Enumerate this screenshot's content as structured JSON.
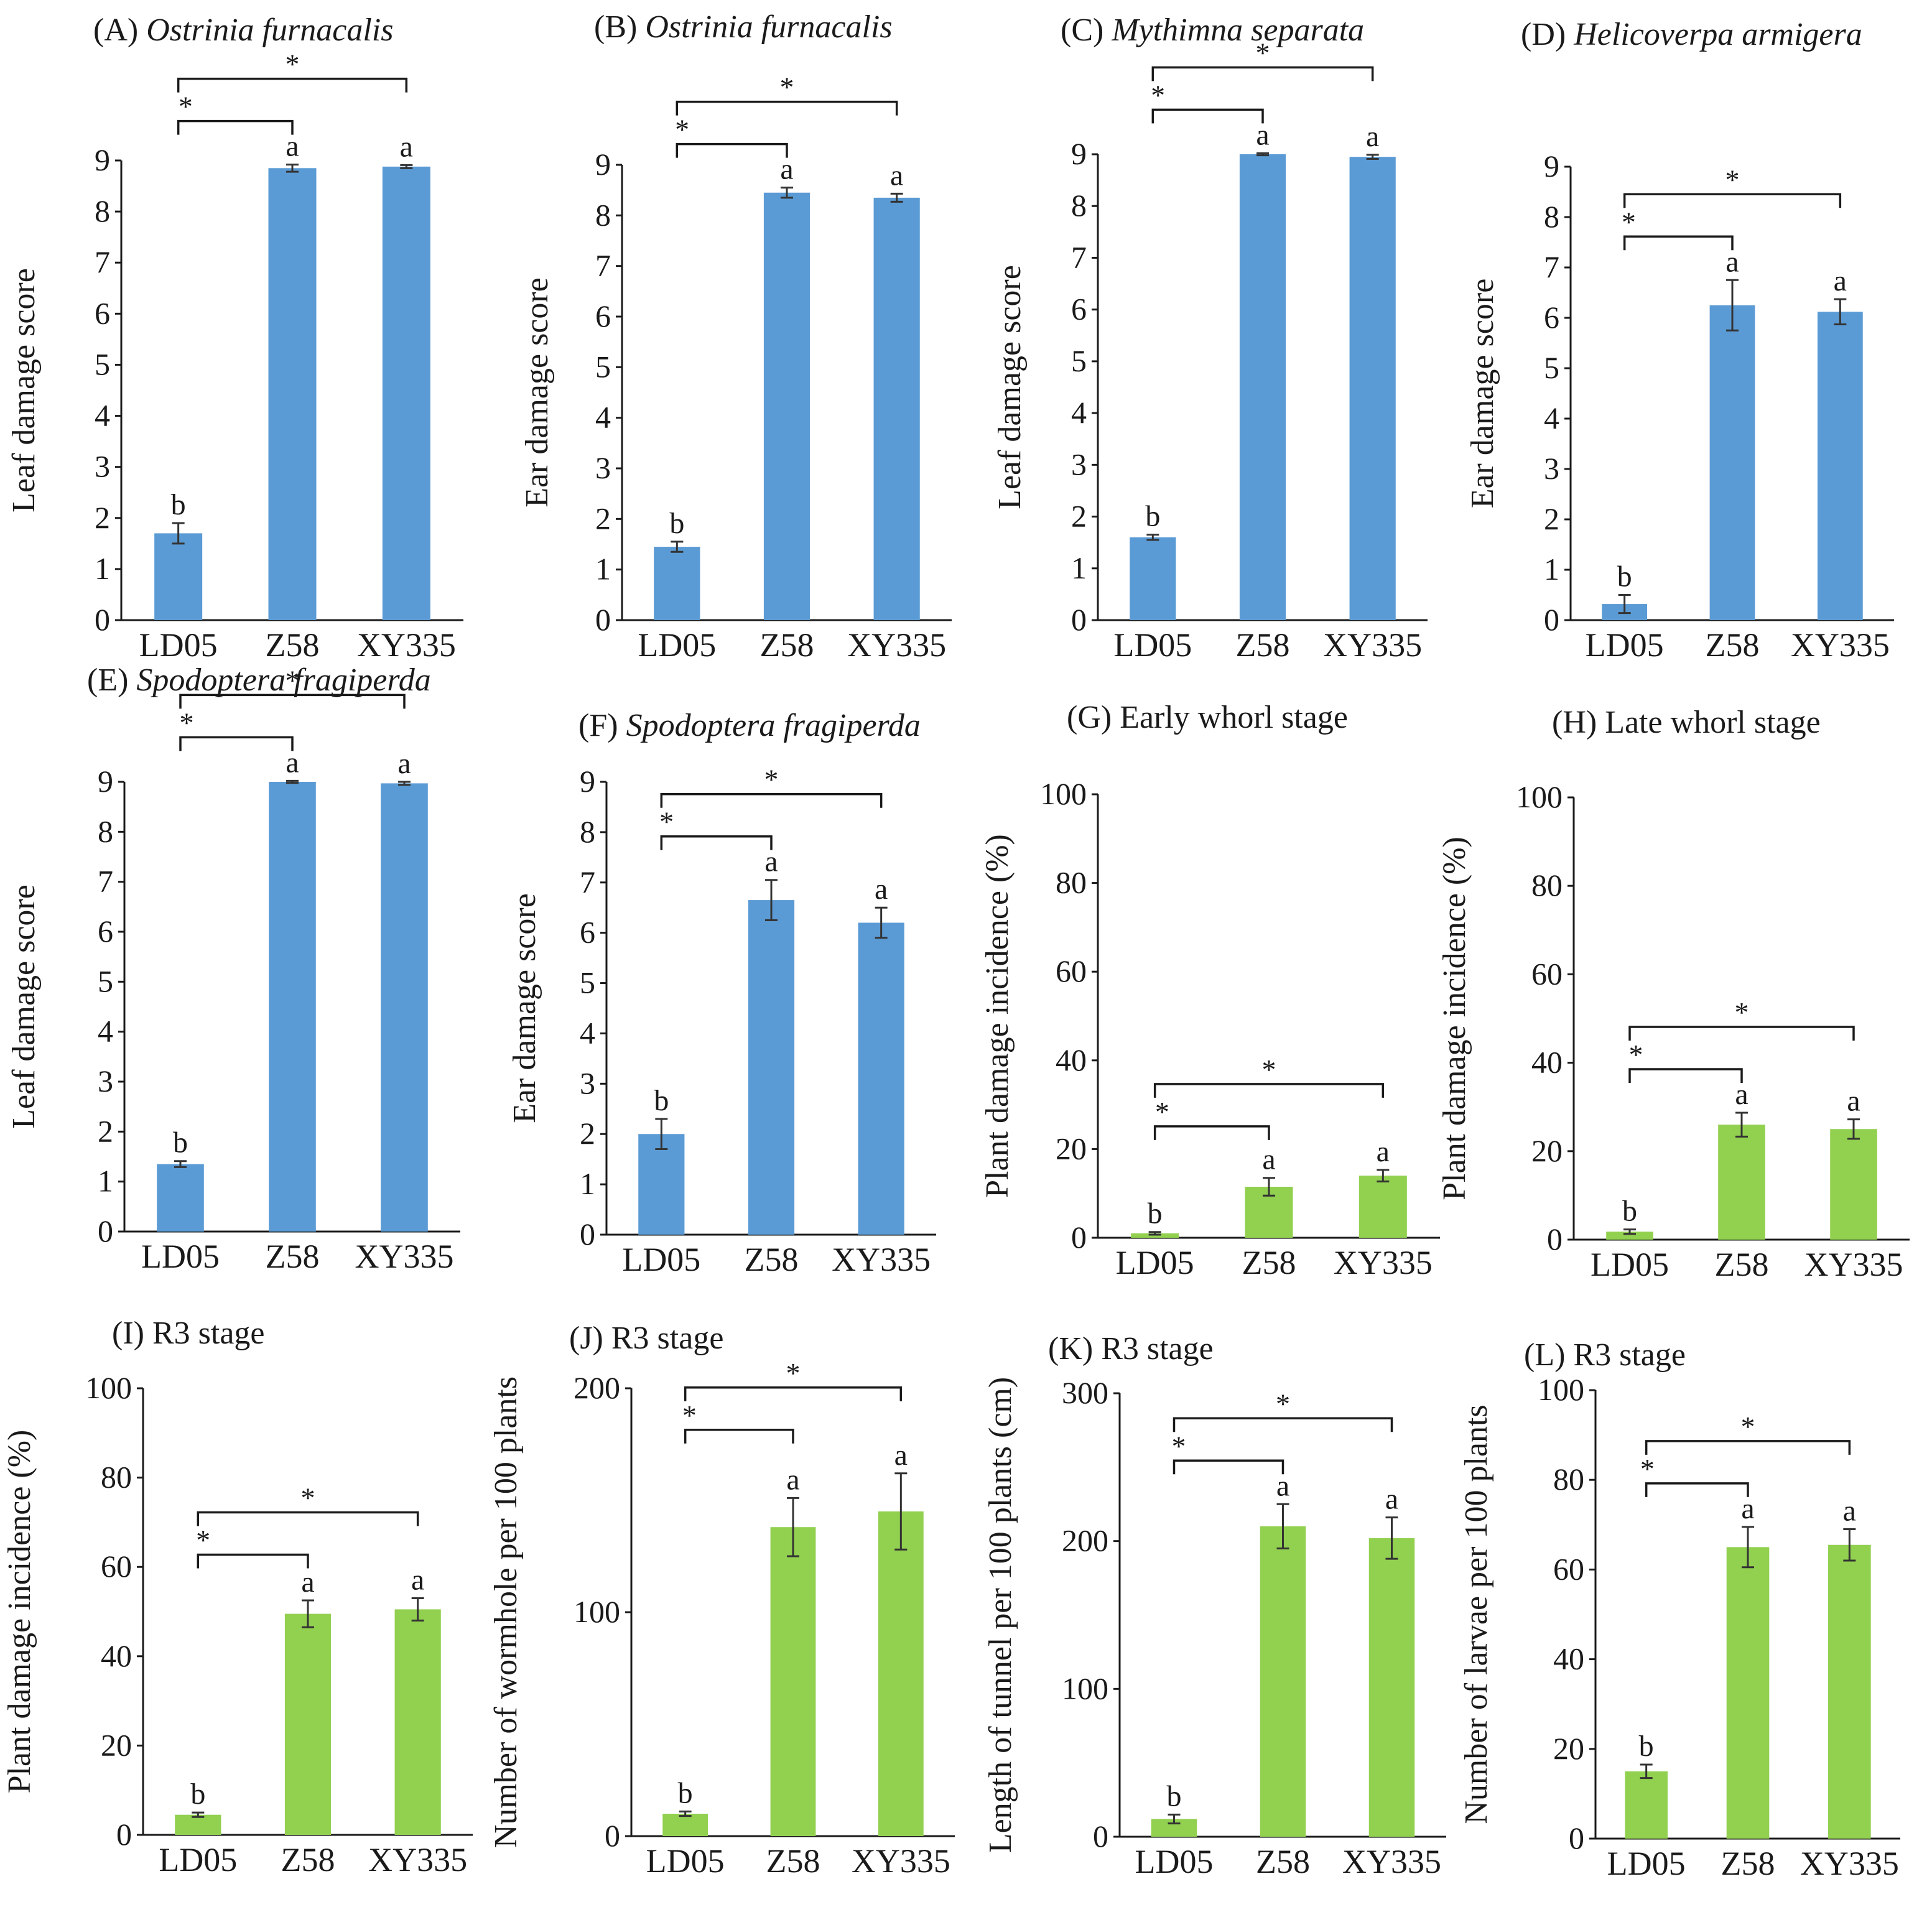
{
  "figure": {
    "colors": {
      "blue": "#5b9bd5",
      "green": "#92d050"
    },
    "layout_hint": "4 columns x 3 rows of bar charts"
  },
  "chart_data": [
    {
      "id": "A",
      "type": "bar",
      "letter": "(A)",
      "title": "Ostrinia furnacalis",
      "italic": true,
      "ylabel": "Leaf damage score",
      "ylim": [
        0,
        9
      ],
      "yticks": [
        0,
        1,
        2,
        3,
        4,
        5,
        6,
        7,
        8,
        9
      ],
      "categories": [
        "LD05",
        "Z58",
        "XY335"
      ],
      "values": [
        1.7,
        8.85,
        8.88
      ],
      "errors": [
        0.2,
        0.07,
        0.03
      ],
      "labels": [
        "b",
        "a",
        "a"
      ],
      "color": "blue",
      "brackets": [
        {
          "from": 0,
          "to": 1,
          "text": "*"
        },
        {
          "from": 0,
          "to": 2,
          "text": "*"
        }
      ]
    },
    {
      "id": "B",
      "type": "bar",
      "letter": "(B)",
      "title": "Ostrinia furnacalis",
      "italic": true,
      "ylabel": "Ear damage score",
      "ylim": [
        0,
        9
      ],
      "yticks": [
        0,
        1,
        2,
        3,
        4,
        5,
        6,
        7,
        8,
        9
      ],
      "categories": [
        "LD05",
        "Z58",
        "XY335"
      ],
      "values": [
        1.45,
        8.45,
        8.35
      ],
      "errors": [
        0.1,
        0.1,
        0.08
      ],
      "labels": [
        "b",
        "a",
        "a"
      ],
      "color": "blue",
      "brackets": [
        {
          "from": 0,
          "to": 1,
          "text": "*"
        },
        {
          "from": 0,
          "to": 2,
          "text": "*"
        }
      ]
    },
    {
      "id": "C",
      "type": "bar",
      "letter": "(C)",
      "title": "Mythimna separata",
      "italic": true,
      "ylabel": "Leaf damage score",
      "ylim": [
        0,
        9
      ],
      "yticks": [
        0,
        1,
        2,
        3,
        4,
        5,
        6,
        7,
        8,
        9
      ],
      "categories": [
        "LD05",
        "Z58",
        "XY335"
      ],
      "values": [
        1.6,
        9.0,
        8.95
      ],
      "errors": [
        0.05,
        0.02,
        0.04
      ],
      "labels": [
        "b",
        "a",
        "a"
      ],
      "color": "blue",
      "brackets": [
        {
          "from": 0,
          "to": 1,
          "text": "*"
        },
        {
          "from": 0,
          "to": 2,
          "text": "*"
        }
      ]
    },
    {
      "id": "D",
      "type": "bar",
      "letter": "(D)",
      "title": "Helicoverpa armigera",
      "italic": true,
      "ylabel": "Ear damage score",
      "ylim": [
        0,
        9
      ],
      "yticks": [
        0,
        1,
        2,
        3,
        4,
        5,
        6,
        7,
        8,
        9
      ],
      "categories": [
        "LD05",
        "Z58",
        "XY335"
      ],
      "values": [
        0.32,
        6.25,
        6.12
      ],
      "errors": [
        0.18,
        0.5,
        0.25
      ],
      "labels": [
        "b",
        "a",
        "a"
      ],
      "color": "blue",
      "brackets": [
        {
          "from": 0,
          "to": 1,
          "text": "*"
        },
        {
          "from": 0,
          "to": 2,
          "text": "*"
        }
      ]
    },
    {
      "id": "E",
      "type": "bar",
      "letter": "(E)",
      "title": "Spodoptera fragiperda",
      "italic": true,
      "ylabel": "Leaf damage score",
      "ylim": [
        0,
        9
      ],
      "yticks": [
        0,
        1,
        2,
        3,
        4,
        5,
        6,
        7,
        8,
        9
      ],
      "categories": [
        "LD05",
        "Z58",
        "XY335"
      ],
      "values": [
        1.35,
        9.0,
        8.97
      ],
      "errors": [
        0.06,
        0.02,
        0.03
      ],
      "labels": [
        "b",
        "a",
        "a"
      ],
      "color": "blue",
      "brackets": [
        {
          "from": 0,
          "to": 1,
          "text": "*"
        },
        {
          "from": 0,
          "to": 2,
          "text": "*"
        }
      ]
    },
    {
      "id": "F",
      "type": "bar",
      "letter": "(F)",
      "title": "Spodoptera fragiperda",
      "italic": true,
      "ylabel": "Ear damage score",
      "ylim": [
        0,
        9
      ],
      "yticks": [
        0,
        1,
        2,
        3,
        4,
        5,
        6,
        7,
        8,
        9
      ],
      "categories": [
        "LD05",
        "Z58",
        "XY335"
      ],
      "values": [
        2.0,
        6.65,
        6.2
      ],
      "errors": [
        0.3,
        0.4,
        0.3
      ],
      "labels": [
        "b",
        "a",
        "a"
      ],
      "color": "blue",
      "brackets": [
        {
          "from": 0,
          "to": 1,
          "text": "*"
        },
        {
          "from": 0,
          "to": 2,
          "text": "*"
        }
      ]
    },
    {
      "id": "G",
      "type": "bar",
      "letter": "(G)",
      "title": "Early whorl stage",
      "italic": false,
      "ylabel": "Plant damage incidence (%)",
      "ylim": [
        0,
        100
      ],
      "yticks": [
        0,
        20,
        40,
        60,
        80,
        100
      ],
      "categories": [
        "LD05",
        "Z58",
        "XY335"
      ],
      "values": [
        1.0,
        11.5,
        14.0
      ],
      "errors": [
        0.3,
        2.0,
        1.3
      ],
      "labels": [
        "b",
        "a",
        "a"
      ],
      "color": "green",
      "brackets": [
        {
          "from": 0,
          "to": 1,
          "text": "*"
        },
        {
          "from": 0,
          "to": 2,
          "text": "*"
        }
      ]
    },
    {
      "id": "H",
      "type": "bar",
      "letter": "(H)",
      "title": "Late whorl stage",
      "italic": false,
      "ylabel": "Plant damage incidence (%)",
      "ylim": [
        0,
        100
      ],
      "yticks": [
        0,
        20,
        40,
        60,
        80,
        100
      ],
      "categories": [
        "LD05",
        "Z58",
        "XY335"
      ],
      "values": [
        1.8,
        26.0,
        25.0
      ],
      "errors": [
        0.5,
        2.7,
        2.2
      ],
      "labels": [
        "b",
        "a",
        "a"
      ],
      "color": "green",
      "brackets": [
        {
          "from": 0,
          "to": 1,
          "text": "*"
        },
        {
          "from": 0,
          "to": 2,
          "text": "*"
        }
      ]
    },
    {
      "id": "I",
      "type": "bar",
      "letter": "(I)",
      "title": "R3 stage",
      "italic": false,
      "ylabel": "Plant damage incidence (%)",
      "ylim": [
        0,
        100
      ],
      "yticks": [
        0,
        20,
        40,
        60,
        80,
        100
      ],
      "categories": [
        "LD05",
        "Z58",
        "XY335"
      ],
      "values": [
        4.5,
        49.5,
        50.5
      ],
      "errors": [
        0.5,
        3.0,
        2.5
      ],
      "labels": [
        "b",
        "a",
        "a"
      ],
      "color": "green",
      "brackets": [
        {
          "from": 0,
          "to": 1,
          "text": "*"
        },
        {
          "from": 0,
          "to": 2,
          "text": "*"
        }
      ]
    },
    {
      "id": "J",
      "type": "bar",
      "letter": "(J)",
      "title": "R3 stage",
      "italic": false,
      "ylabel": "Number of wormhole per 100 plants",
      "ylim": [
        0,
        200
      ],
      "yticks": [
        0,
        100,
        200
      ],
      "categories": [
        "LD05",
        "Z58",
        "XY335"
      ],
      "values": [
        10,
        138,
        145
      ],
      "errors": [
        1,
        13,
        17
      ],
      "labels": [
        "b",
        "a",
        "a"
      ],
      "color": "green",
      "brackets": [
        {
          "from": 0,
          "to": 1,
          "text": "*"
        },
        {
          "from": 0,
          "to": 2,
          "text": "*"
        }
      ]
    },
    {
      "id": "K",
      "type": "bar",
      "letter": "(K)",
      "title": "R3 stage",
      "italic": false,
      "ylabel": "Length of tunnel per 100 plants (cm)",
      "ylim": [
        0,
        300
      ],
      "yticks": [
        0,
        100,
        200,
        300
      ],
      "categories": [
        "LD05",
        "Z58",
        "XY335"
      ],
      "values": [
        12,
        210,
        202
      ],
      "errors": [
        3,
        15,
        14
      ],
      "labels": [
        "b",
        "a",
        "a"
      ],
      "color": "green",
      "brackets": [
        {
          "from": 0,
          "to": 1,
          "text": "*"
        },
        {
          "from": 0,
          "to": 2,
          "text": "*"
        }
      ]
    },
    {
      "id": "L",
      "type": "bar",
      "letter": "(L)",
      "title": "R3 stage",
      "italic": false,
      "ylabel": "Number of larvae per 100 plants",
      "ylim": [
        0,
        100
      ],
      "yticks": [
        0,
        20,
        40,
        60,
        80,
        100
      ],
      "categories": [
        "LD05",
        "Z58",
        "XY335"
      ],
      "values": [
        15,
        65,
        65.5
      ],
      "errors": [
        1.5,
        4.5,
        3.5
      ],
      "labels": [
        "b",
        "a",
        "a"
      ],
      "color": "green",
      "brackets": [
        {
          "from": 0,
          "to": 1,
          "text": "*"
        },
        {
          "from": 0,
          "to": 2,
          "text": "*"
        }
      ]
    }
  ]
}
